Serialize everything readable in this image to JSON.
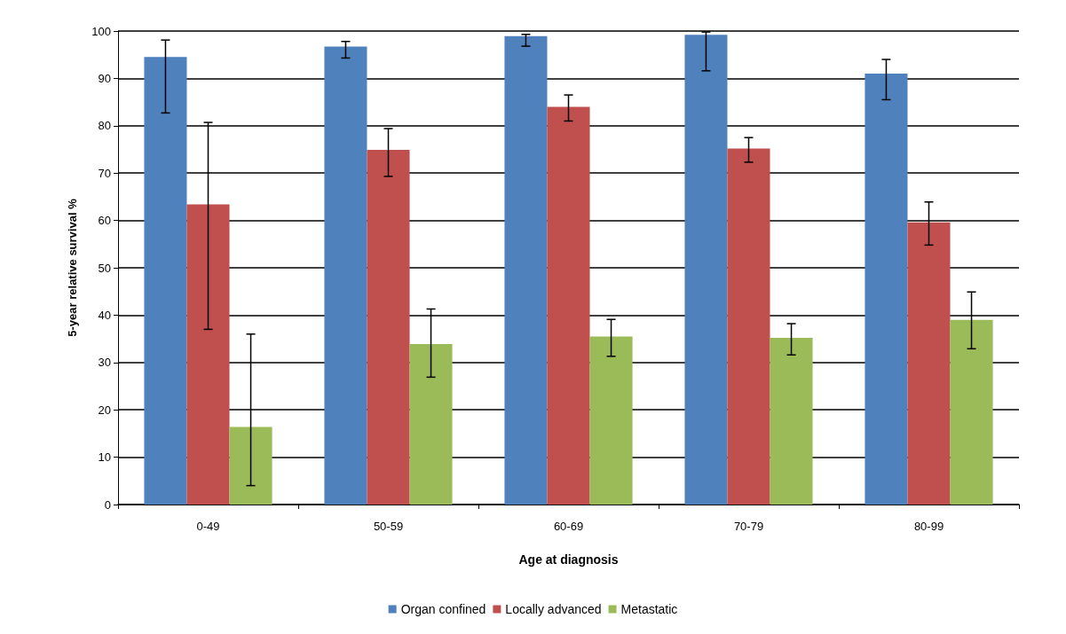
{
  "chart_data": {
    "type": "bar",
    "xlabel": "Age at diagnosis",
    "ylabel": "5-year relative survival %",
    "categories": [
      "0-49",
      "50-59",
      "60-69",
      "70-79",
      "80-99"
    ],
    "series": [
      {
        "name": "Organ confined",
        "color": "#4f81bd",
        "values": [
          94.5,
          96.7,
          98.9,
          99.2,
          91.0
        ],
        "errors": [
          [
            82.7,
            98.1
          ],
          [
            94.3,
            97.8
          ],
          [
            96.8,
            99.3
          ],
          [
            91.6,
            99.8
          ],
          [
            85.5,
            94.0
          ]
        ]
      },
      {
        "name": "Locally advanced",
        "color": "#c0504d",
        "values": [
          63.4,
          74.9,
          84.0,
          75.2,
          59.6
        ],
        "errors": [
          [
            37.0,
            80.7
          ],
          [
            69.3,
            79.4
          ],
          [
            81.0,
            86.5
          ],
          [
            72.3,
            77.5
          ],
          [
            54.8,
            63.9
          ]
        ]
      },
      {
        "name": "Metastatic",
        "color": "#9bbb59",
        "values": [
          16.4,
          33.9,
          35.5,
          35.2,
          39.0
        ],
        "errors": [
          [
            4.0,
            36.0
          ],
          [
            26.9,
            41.3
          ],
          [
            31.3,
            39.1
          ],
          [
            31.6,
            38.2
          ],
          [
            32.9,
            44.9
          ]
        ]
      }
    ],
    "ylim": [
      0,
      100
    ],
    "yticks": [
      0,
      10,
      20,
      30,
      40,
      50,
      60,
      70,
      80,
      90,
      100
    ],
    "grid": "y",
    "legend": "bottom"
  }
}
